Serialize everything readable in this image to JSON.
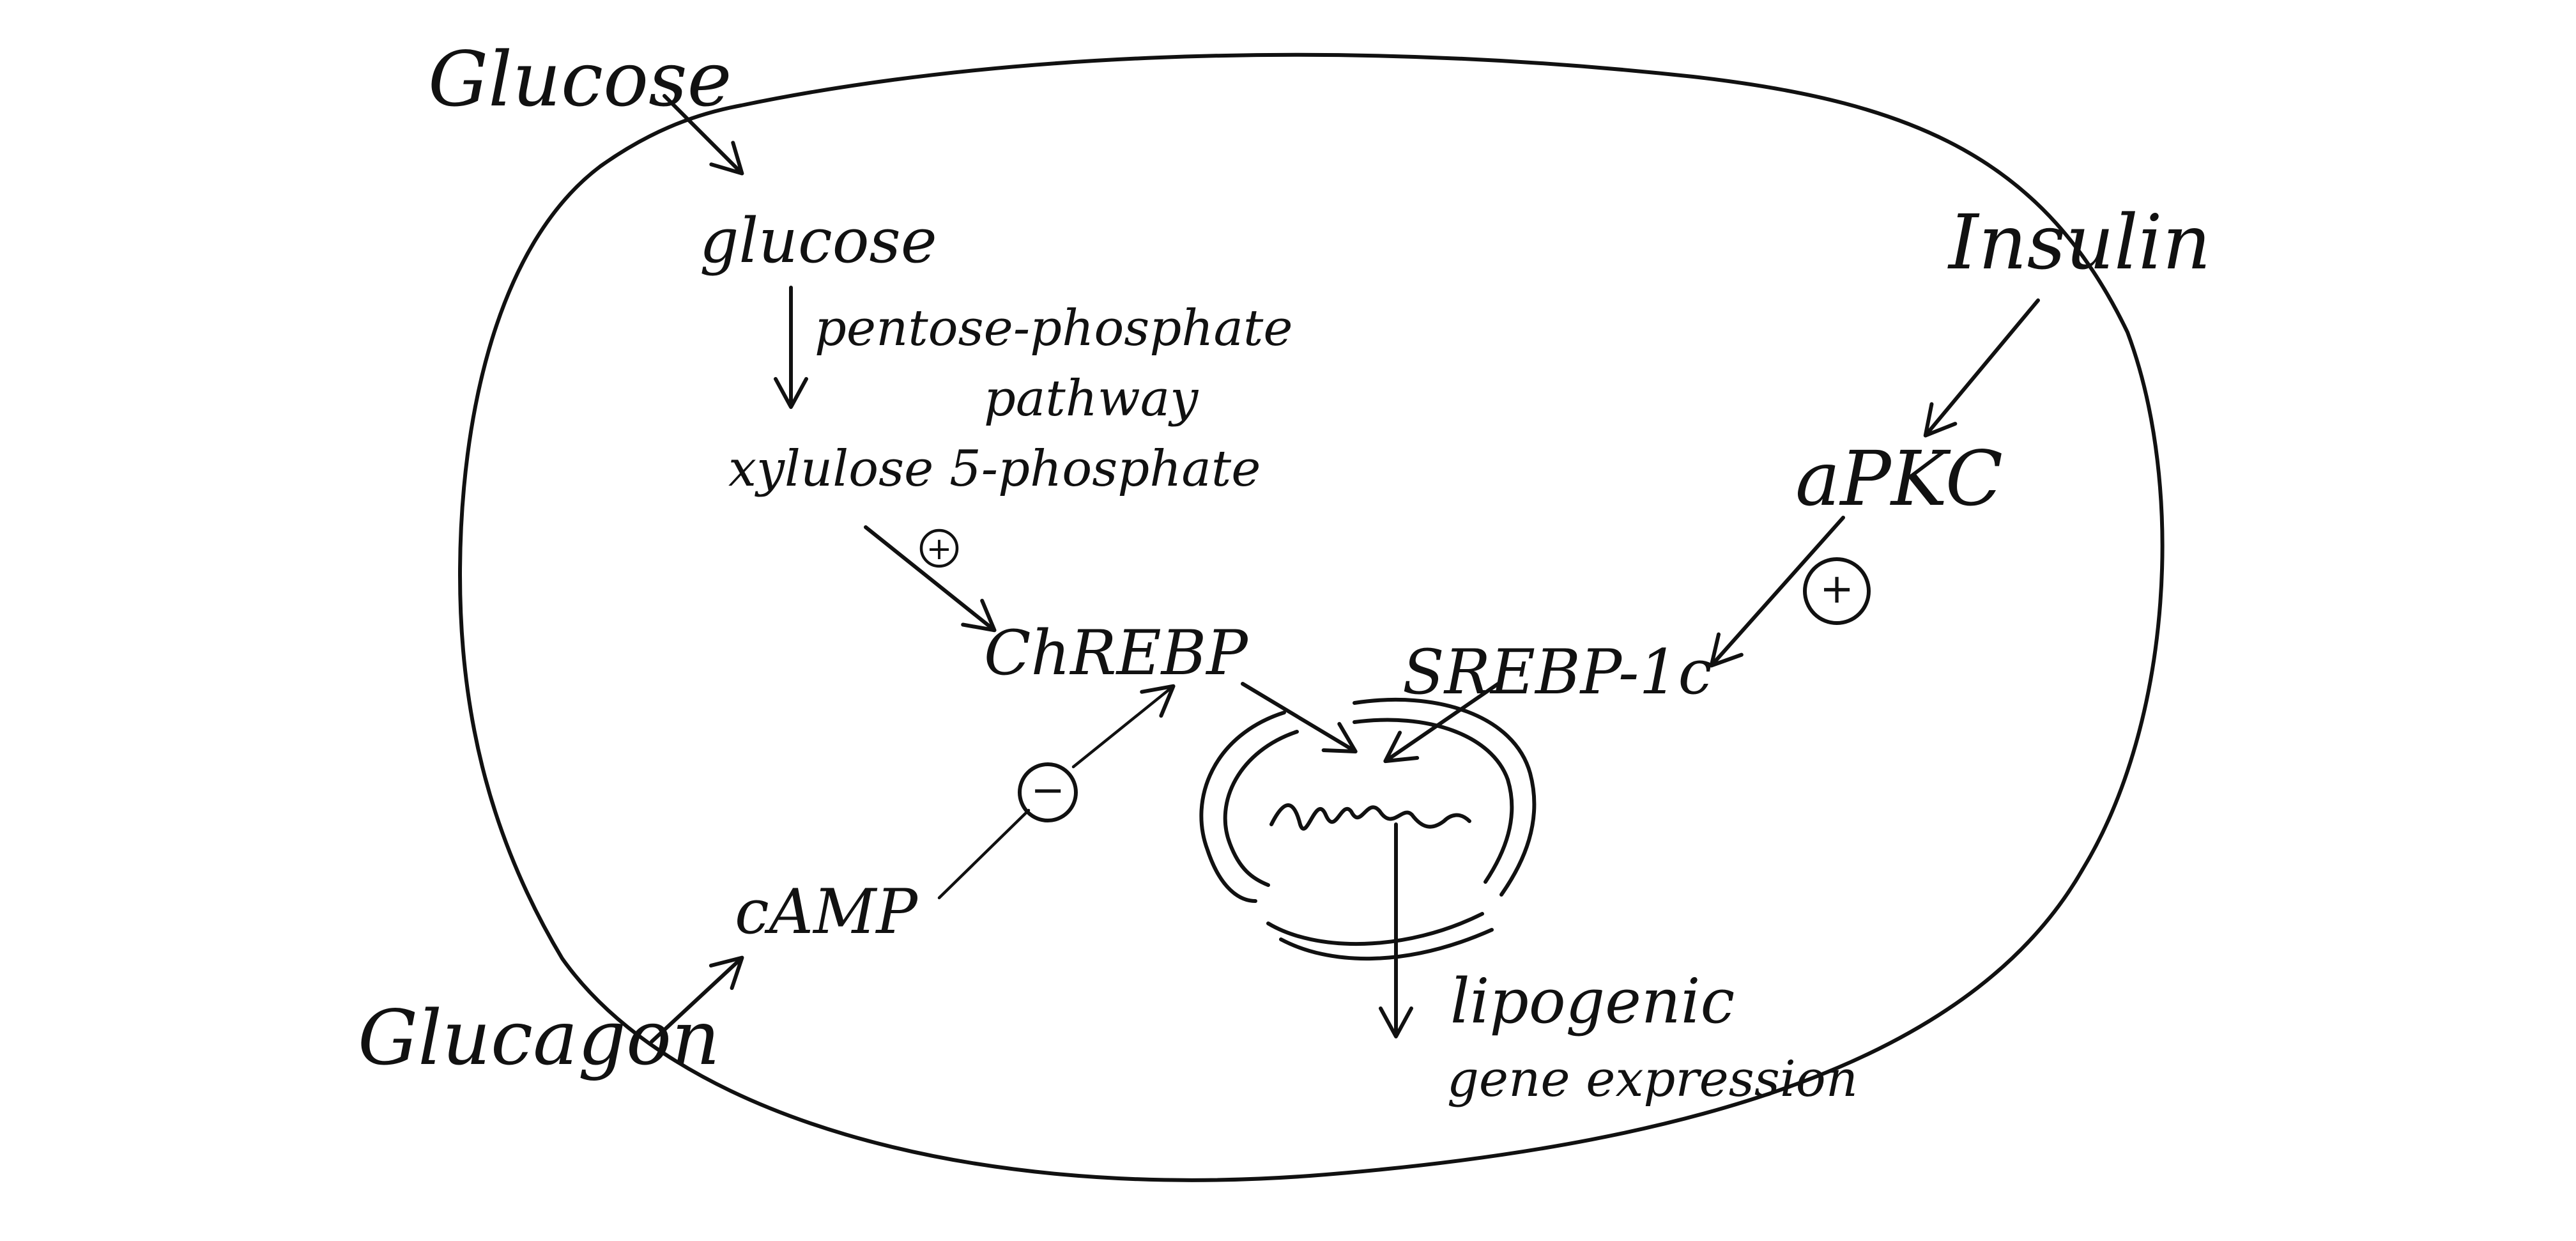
{
  "labels": {
    "glucose_outside": "Glucose",
    "glucose_inside": "glucose",
    "pathway_line1": "pentose-phosphate",
    "pathway_line2": "pathway",
    "xylulose": "xylulose 5-phosphate",
    "chrebp": "ChREBP",
    "camp": "cAMP",
    "glucagon": "Glucagon",
    "insulin": "Insulin",
    "apkc": "aPKC",
    "srebp": "SREBP-1c",
    "lipogenic_line1": "lipogenic",
    "lipogenic_line2": "gene expression"
  },
  "signs": {
    "xylulose_to_chrebp": "+",
    "apkc_to_srebp": "+",
    "camp_to_chrebp": "−"
  },
  "colors": {
    "ink": "#111111",
    "background": "#ffffff"
  }
}
